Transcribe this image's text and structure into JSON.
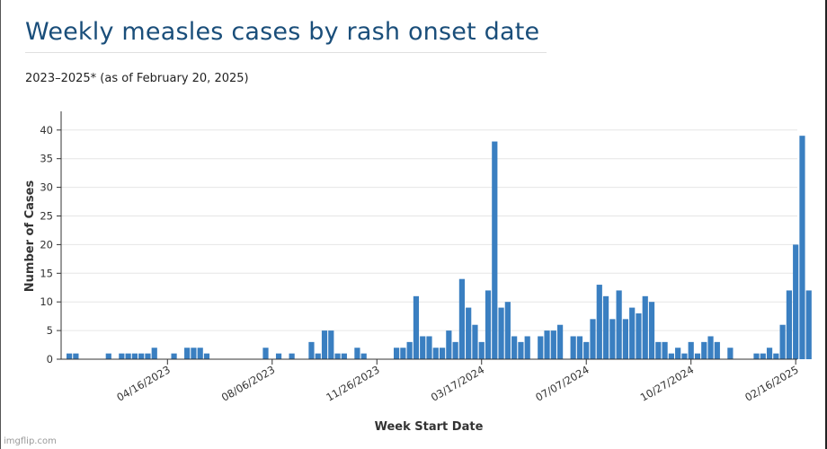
{
  "header": {
    "title": "Weekly measles cases by rash onset date",
    "subtitle": "2023–2025* (as of February 20, 2025)"
  },
  "watermark": "imgflip.com",
  "chart_data": {
    "type": "bar",
    "title": "Weekly measles cases by rash onset date",
    "subtitle": "2023–2025* (as of February 20, 2025)",
    "xlabel": "Week Start Date",
    "ylabel": "Number of Cases",
    "ylim": [
      0,
      40
    ],
    "yticks": [
      0,
      5,
      10,
      15,
      20,
      25,
      30,
      35,
      40
    ],
    "grid": true,
    "bar_color": "#3a7fc1",
    "week_start": "01/01/2023",
    "x_tick_labels": [
      "04/16/2023",
      "08/06/2023",
      "11/26/2023",
      "03/17/2024",
      "07/07/2024",
      "10/27/2024",
      "02/16/2025"
    ],
    "values": [
      1,
      1,
      0,
      0,
      0,
      0,
      1,
      0,
      1,
      1,
      1,
      1,
      1,
      2,
      0,
      0,
      1,
      0,
      2,
      2,
      2,
      1,
      0,
      0,
      0,
      0,
      0,
      0,
      0,
      0,
      2,
      0,
      1,
      0,
      1,
      0,
      0,
      3,
      1,
      5,
      5,
      1,
      1,
      0,
      2,
      1,
      0,
      0,
      0,
      0,
      2,
      2,
      3,
      11,
      4,
      4,
      2,
      2,
      5,
      3,
      14,
      9,
      6,
      3,
      12,
      38,
      9,
      10,
      4,
      3,
      4,
      0,
      4,
      5,
      5,
      6,
      0,
      4,
      4,
      3,
      7,
      13,
      11,
      7,
      12,
      7,
      9,
      8,
      11,
      10,
      3,
      3,
      1,
      2,
      1,
      3,
      1,
      3,
      4,
      3,
      0,
      2,
      0,
      0,
      0,
      1,
      1,
      2,
      1,
      6,
      12,
      20,
      39,
      12
    ]
  }
}
